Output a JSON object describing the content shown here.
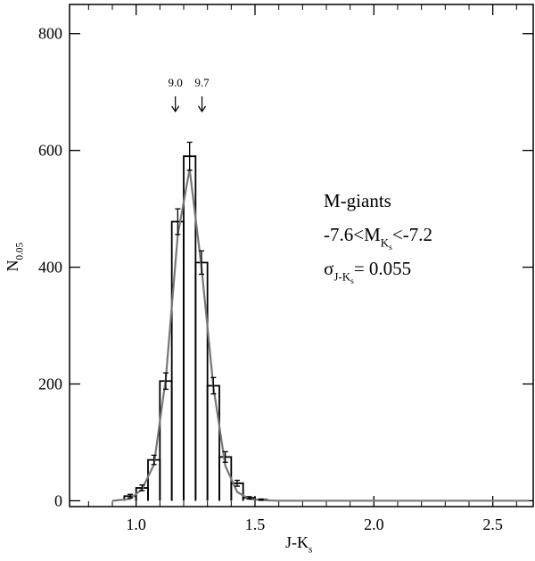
{
  "chart_data": {
    "type": "histogram",
    "xlabel": [
      {
        "text": "J-K",
        "level": 0
      },
      {
        "text": "s",
        "level": 1
      }
    ],
    "ylabel": [
      {
        "text": "N",
        "level": 0
      },
      {
        "text": "0.05",
        "level": 1
      }
    ],
    "bins": [
      0.95,
      1.0,
      1.05,
      1.1,
      1.15,
      1.2,
      1.25,
      1.3,
      1.35,
      1.4,
      1.45,
      1.5,
      1.55
    ],
    "counts": [
      8,
      22,
      70,
      205,
      478,
      590,
      408,
      197,
      75,
      30,
      5,
      2
    ],
    "errors": [
      3,
      5,
      8,
      14,
      22,
      24,
      20,
      14,
      9,
      5,
      2,
      1
    ],
    "color": "#000000",
    "fit": {
      "color": "#777777",
      "x": [
        0.9,
        0.975,
        1.025,
        1.075,
        1.125,
        1.175,
        1.225,
        1.275,
        1.325,
        1.375,
        1.425,
        1.475,
        1.525,
        1.6,
        2.65
      ],
      "y": [
        0,
        3,
        20,
        62,
        210,
        455,
        568,
        400,
        195,
        60,
        15,
        3,
        1,
        0,
        0
      ]
    },
    "arrows": [
      {
        "x": 1.165,
        "label": "9.0"
      },
      {
        "x": 1.277,
        "label": "9.7"
      }
    ],
    "annotation": [
      [
        {
          "text": "M-giants",
          "level": 0
        }
      ],
      [
        {
          "text": "-7.6<M",
          "level": 0
        },
        {
          "text": "K",
          "level": 1
        },
        {
          "text": "s",
          "level": 2
        },
        {
          "text": "<-7.2",
          "level": 0
        }
      ],
      [
        {
          "text": "σ",
          "level": 0
        },
        {
          "text": "J-K",
          "level": 1
        },
        {
          "text": "s",
          "level": 2
        },
        {
          "text": "= 0.055",
          "level": 0
        }
      ]
    ],
    "xlim": [
      0.72,
      2.67
    ],
    "ylim": [
      -10,
      850
    ],
    "xticks": [
      {
        "value": 1.0,
        "label": "1.0"
      },
      {
        "value": 1.5,
        "label": "1.5"
      },
      {
        "value": 2.0,
        "label": "2.0"
      },
      {
        "value": 2.5,
        "label": "2.5"
      }
    ],
    "xminorticks": [
      0.8,
      0.9,
      1.1,
      1.2,
      1.3,
      1.4,
      1.6,
      1.7,
      1.8,
      1.9,
      2.1,
      2.2,
      2.3,
      2.4,
      2.6
    ],
    "yticks": [
      0,
      200,
      400,
      600,
      800
    ]
  }
}
